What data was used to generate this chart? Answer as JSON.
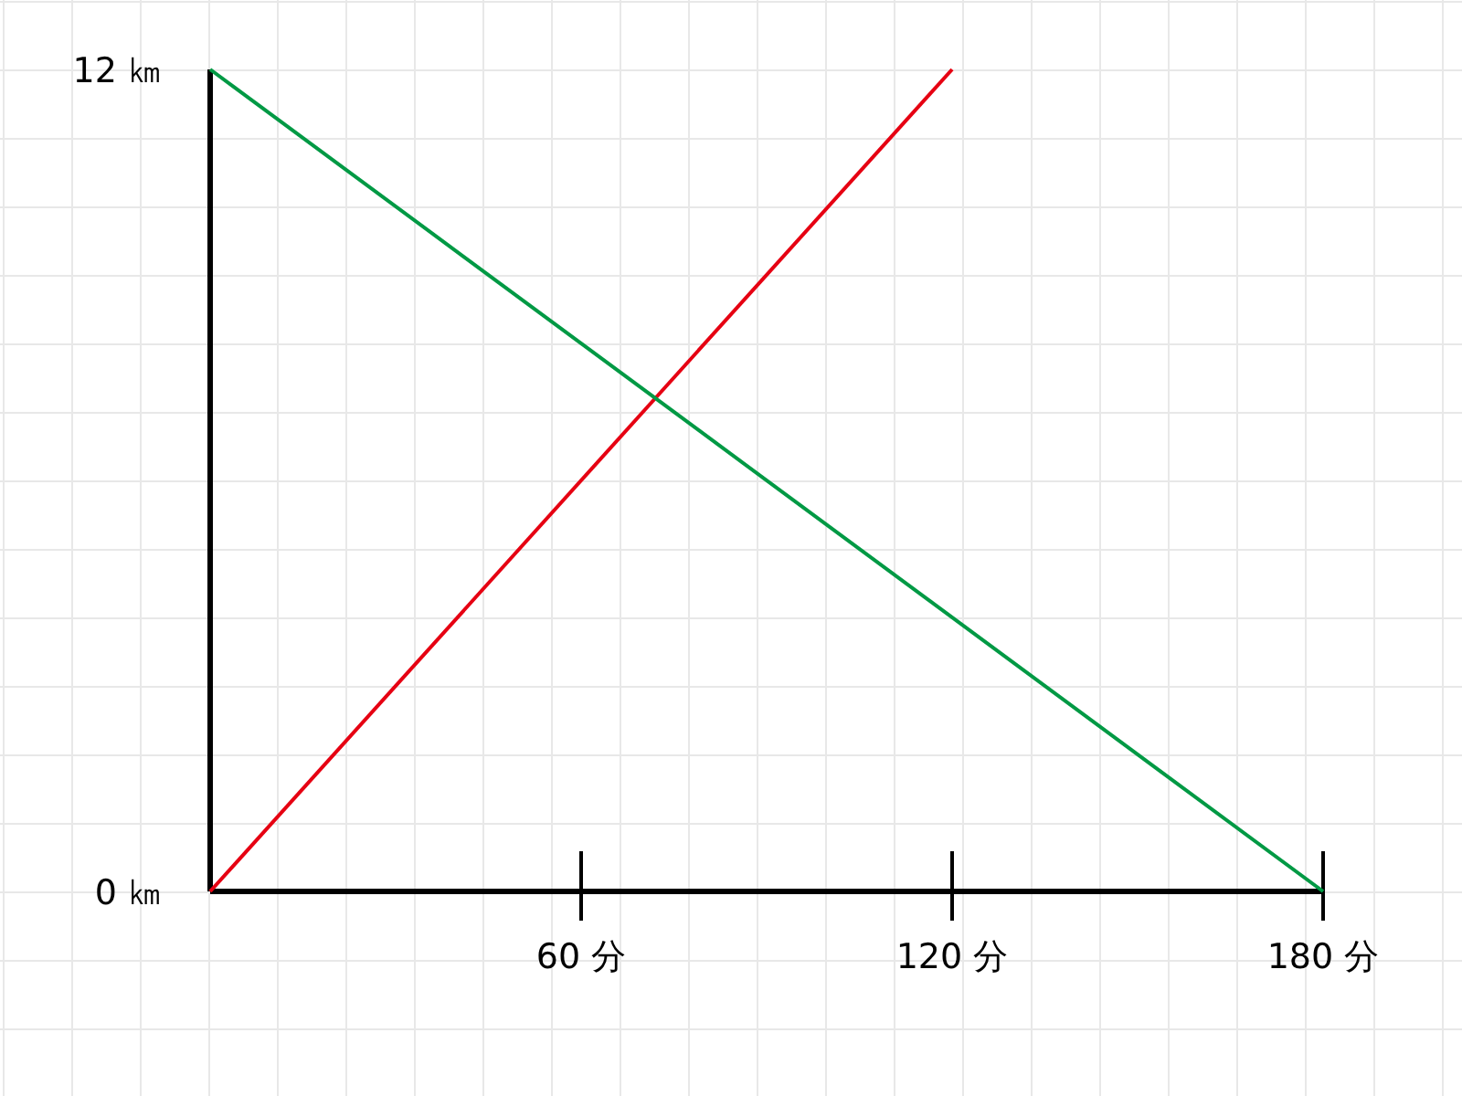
{
  "chart_data": {
    "type": "line",
    "series": [
      {
        "color": "#e60012",
        "x": [
          0,
          120
        ],
        "values": [
          0,
          12
        ]
      },
      {
        "color": "#009944",
        "x": [
          0,
          180
        ],
        "values": [
          12,
          0
        ]
      }
    ],
    "xlim": [
      0,
      180
    ],
    "xticks": [
      {
        "value": 60,
        "label": "60 分"
      },
      {
        "value": 120,
        "label": "120 分"
      },
      {
        "value": 180,
        "label": "180 分"
      }
    ],
    "ylim": [
      0,
      12
    ],
    "yticks": [
      {
        "value": 0,
        "label": "0 ㎞"
      },
      {
        "value": 12,
        "label": "12 ㎞"
      }
    ],
    "grid": true,
    "marker": "none",
    "line_style": "solid"
  }
}
